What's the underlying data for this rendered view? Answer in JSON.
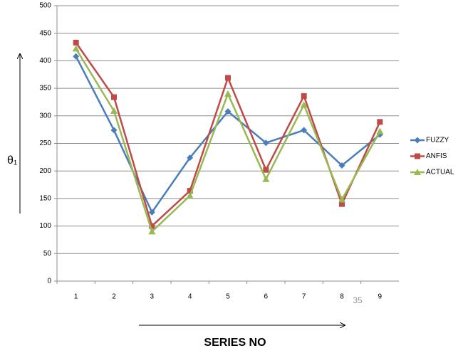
{
  "chart_data": {
    "type": "line",
    "y_label": "θ₁",
    "x_label": "SERIES NO",
    "annotation": "35",
    "categories": [
      "1",
      "2",
      "3",
      "4",
      "5",
      "6",
      "7",
      "8",
      "9"
    ],
    "series": [
      {
        "name": "FUZZY",
        "color": "#4a7ebb",
        "marker": "diamond",
        "values": [
          408,
          274,
          125,
          224,
          308,
          251,
          274,
          210,
          266
        ]
      },
      {
        "name": "ANFIS",
        "color": "#be4b48",
        "marker": "square",
        "values": [
          433,
          334,
          100,
          164,
          369,
          202,
          336,
          140,
          289
        ]
      },
      {
        "name": "ACTUAL",
        "color": "#98b954",
        "marker": "triangle",
        "values": [
          422,
          309,
          90,
          155,
          340,
          185,
          320,
          148,
          272
        ]
      }
    ],
    "ylim": [
      0,
      500
    ],
    "yticks": [
      0,
      50,
      100,
      150,
      200,
      250,
      300,
      350,
      400,
      450,
      500
    ],
    "grid": true,
    "legend": "right"
  }
}
